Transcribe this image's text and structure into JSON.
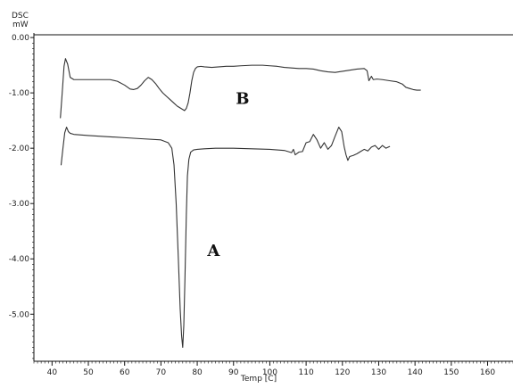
{
  "chart_data": {
    "type": "line",
    "title": "",
    "ylabel_line1": "DSC",
    "ylabel_line2": "mW",
    "xlabel": "Temp  [C]",
    "xlim": [
      35,
      167
    ],
    "ylim": [
      -5.85,
      0.05
    ],
    "x_ticks": [
      40,
      50,
      60,
      70,
      80,
      90,
      100,
      110,
      120,
      130,
      140,
      150,
      160
    ],
    "x_tick_labels": [
      "40",
      "50",
      "60",
      "70",
      "80",
      "90",
      "100",
      "110",
      "120",
      "130",
      "140",
      "150",
      "160"
    ],
    "y_ticks": [
      0,
      -1,
      -2,
      -3,
      -4,
      -5
    ],
    "y_tick_labels": [
      "0.00",
      "-1.00",
      "-2.00",
      "-3.00",
      "-4.00",
      "-5.00"
    ],
    "grid": false,
    "line_color": "#333333",
    "series": [
      {
        "name": "B",
        "x": [
          42.3,
          42.8,
          43.3,
          43.7,
          44.3,
          45,
          46,
          48,
          52,
          56,
          58,
          60,
          61.5,
          62.5,
          63.5,
          64.5,
          65.5,
          66.5,
          67.5,
          68.5,
          69.5,
          70.5,
          71.5,
          72.5,
          73.5,
          74.5,
          75.5,
          76.5,
          77,
          77.5,
          78,
          78.5,
          79,
          79.5,
          80,
          81,
          82,
          84,
          86,
          88,
          90,
          92,
          95,
          98,
          100,
          102,
          104,
          106,
          108,
          110,
          112,
          114,
          116,
          118,
          120,
          122,
          124,
          126,
          126.8,
          127.3,
          128,
          128.5,
          129.5,
          131,
          133,
          135,
          136.5,
          137.5,
          138.5,
          139.5,
          140.5,
          141.5
        ],
        "y": [
          -1.45,
          -1.0,
          -0.52,
          -0.38,
          -0.48,
          -0.72,
          -0.76,
          -0.76,
          -0.76,
          -0.76,
          -0.79,
          -0.86,
          -0.93,
          -0.94,
          -0.92,
          -0.86,
          -0.78,
          -0.72,
          -0.76,
          -0.83,
          -0.92,
          -1.0,
          -1.06,
          -1.12,
          -1.18,
          -1.24,
          -1.28,
          -1.32,
          -1.28,
          -1.18,
          -1.0,
          -0.78,
          -0.63,
          -0.56,
          -0.53,
          -0.52,
          -0.53,
          -0.54,
          -0.53,
          -0.52,
          -0.52,
          -0.51,
          -0.5,
          -0.5,
          -0.51,
          -0.52,
          -0.54,
          -0.55,
          -0.56,
          -0.56,
          -0.57,
          -0.6,
          -0.62,
          -0.63,
          -0.61,
          -0.59,
          -0.57,
          -0.56,
          -0.6,
          -0.78,
          -0.7,
          -0.76,
          -0.75,
          -0.76,
          -0.78,
          -0.8,
          -0.84,
          -0.9,
          -0.92,
          -0.94,
          -0.95,
          -0.95
        ]
      },
      {
        "name": "A",
        "x": [
          42.5,
          43,
          43.5,
          44,
          44.5,
          45,
          46,
          48,
          50,
          55,
          60,
          65,
          70,
          72,
          73,
          73.6,
          74.2,
          74.8,
          75.3,
          75.7,
          76,
          76.3,
          76.6,
          77,
          77.3,
          77.7,
          78.2,
          79,
          80,
          82,
          85,
          90,
          95,
          100,
          104,
          106,
          106.5,
          107,
          108,
          109,
          110,
          111,
          112,
          113,
          114,
          115,
          116,
          117,
          118,
          119,
          119.8,
          120.5,
          121,
          121.5,
          122,
          123,
          124,
          125,
          126,
          127,
          128,
          129,
          130,
          131,
          132,
          133
        ],
        "y": [
          -2.3,
          -2.0,
          -1.72,
          -1.62,
          -1.7,
          -1.73,
          -1.75,
          -1.76,
          -1.77,
          -1.79,
          -1.81,
          -1.83,
          -1.85,
          -1.9,
          -2.0,
          -2.3,
          -3.0,
          -4.0,
          -4.9,
          -5.4,
          -5.6,
          -5.2,
          -4.4,
          -3.2,
          -2.5,
          -2.2,
          -2.07,
          -2.03,
          -2.02,
          -2.01,
          -2.0,
          -2.0,
          -2.01,
          -2.02,
          -2.04,
          -2.08,
          -2.02,
          -2.12,
          -2.07,
          -2.06,
          -1.9,
          -1.88,
          -1.75,
          -1.85,
          -2.0,
          -1.9,
          -2.02,
          -1.95,
          -1.78,
          -1.62,
          -1.7,
          -1.98,
          -2.12,
          -2.22,
          -2.15,
          -2.13,
          -2.1,
          -2.06,
          -2.02,
          -2.05,
          -1.98,
          -1.95,
          -2.02,
          -1.95,
          -2.0,
          -1.97
        ]
      }
    ],
    "annotations": [
      {
        "text": "B",
        "x": 92.5,
        "y": -1.2
      },
      {
        "text": "A",
        "x": 84.5,
        "y": -3.95
      }
    ]
  }
}
